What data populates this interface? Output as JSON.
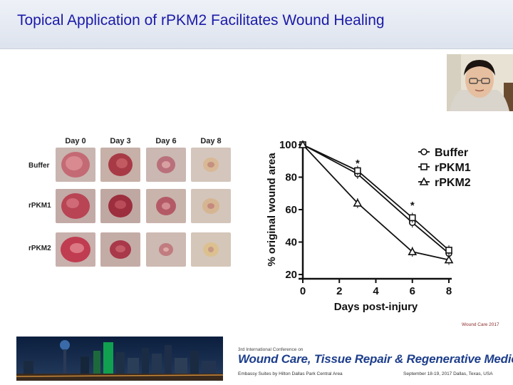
{
  "slide": {
    "title": "Topical Application of rPKM2 Facilitates Wound Healing"
  },
  "photo_grid": {
    "columns": [
      "Day 0",
      "Day 3",
      "Day 6",
      "Day 8"
    ],
    "rows": [
      "Buffer",
      "rPKM1",
      "rPKM2"
    ]
  },
  "chart_data": {
    "type": "line",
    "x": [
      0,
      3,
      6,
      8
    ],
    "xticks": [
      "0",
      "2",
      "4",
      "6",
      "8"
    ],
    "yticks": [
      "20",
      "40",
      "60",
      "80",
      "100"
    ],
    "xlim": [
      0,
      8
    ],
    "ylim": [
      20,
      100
    ],
    "xlabel": "Days post-injury",
    "ylabel": "% original wound area",
    "grid": false,
    "legend_position": "top-right",
    "series": [
      {
        "name": "Buffer",
        "marker": "circle",
        "values": [
          100,
          82,
          52,
          33
        ]
      },
      {
        "name": "rPKM1",
        "marker": "square",
        "values": [
          100,
          84,
          55,
          35
        ]
      },
      {
        "name": "rPKM2",
        "marker": "triangle",
        "values": [
          100,
          64,
          34,
          29
        ]
      }
    ],
    "annotations": [
      {
        "text": "*",
        "x": 3,
        "y": 89
      },
      {
        "text": "*",
        "x": 6,
        "y": 63
      }
    ]
  },
  "conference": {
    "tag": "Wound Care 2017",
    "subtitle": "3rd International Conference on",
    "title": "Wound Care, Tissue Repair & Regenerative Medicine",
    "venue": "Embassy Suites by Hilton Dallas Park Central Area",
    "dates": "September 18-19, 2017 Dallas, Texas, USA"
  }
}
